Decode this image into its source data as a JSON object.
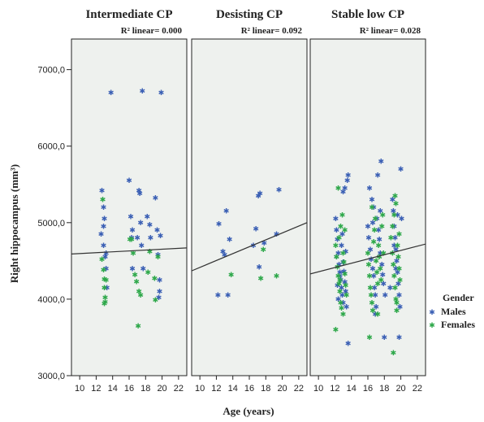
{
  "chart_data": {
    "type": "scatter",
    "xlabel": "Age (years)",
    "ylabel": "Right hippocampus (mm³)",
    "xlim": [
      9,
      23
    ],
    "ylim": [
      3000,
      7400
    ],
    "x_ticks": [
      "10",
      "12",
      "14",
      "16",
      "18",
      "20",
      "22"
    ],
    "x_tick_values": [
      10,
      12,
      14,
      16,
      18,
      20,
      22
    ],
    "y_ticks": [
      "3000,0",
      "4000,0",
      "5000,0",
      "6000,0",
      "7000,0"
    ],
    "y_tick_values": [
      3000,
      4000,
      5000,
      6000,
      7000
    ],
    "colors": {
      "Males": "#3a5fb4",
      "Females": "#2ea84a",
      "panel_bg": "#eef1ee",
      "fit_line": "#333333"
    },
    "legend": {
      "title": "Gender",
      "placement": "right",
      "entries": [
        "Males",
        "Females"
      ]
    },
    "panels": [
      {
        "title": "Intermediate CP",
        "r2_label": "R² linear= 0.000",
        "fit": {
          "x": [
            9,
            23
          ],
          "y": [
            4590,
            4670
          ]
        },
        "series": [
          {
            "name": "Males",
            "points": [
              [
                12.6,
                4850
              ],
              [
                12.7,
                5420
              ],
              [
                12.9,
                5200
              ],
              [
                13.0,
                5050
              ],
              [
                12.9,
                4700
              ],
              [
                13.1,
                4550
              ],
              [
                13.2,
                4600
              ],
              [
                13.2,
                4400
              ],
              [
                13.3,
                4150
              ],
              [
                12.9,
                4950
              ],
              [
                13.8,
                6700
              ],
              [
                16.0,
                5550
              ],
              [
                16.2,
                5080
              ],
              [
                16.4,
                4900
              ],
              [
                16.3,
                4800
              ],
              [
                17.0,
                4800
              ],
              [
                17.2,
                5420
              ],
              [
                17.3,
                5380
              ],
              [
                17.4,
                5000
              ],
              [
                17.5,
                4700
              ],
              [
                17.6,
                6720
              ],
              [
                17.7,
                4400
              ],
              [
                18.2,
                5080
              ],
              [
                18.5,
                4970
              ],
              [
                18.6,
                4800
              ],
              [
                19.2,
                5320
              ],
              [
                19.4,
                4900
              ],
              [
                19.5,
                4580
              ],
              [
                19.7,
                4250
              ],
              [
                19.9,
                6700
              ],
              [
                19.7,
                4100
              ],
              [
                19.6,
                4020
              ],
              [
                19.8,
                4830
              ],
              [
                16.4,
                4400
              ]
            ]
          },
          {
            "name": "Females",
            "points": [
              [
                12.7,
                4520
              ],
              [
                12.9,
                4380
              ],
              [
                13.0,
                4260
              ],
              [
                13.0,
                4150
              ],
              [
                13.1,
                4020
              ],
              [
                13.0,
                3940
              ],
              [
                12.8,
                5300
              ],
              [
                13.2,
                4250
              ],
              [
                13.1,
                3960
              ],
              [
                16.1,
                4780
              ],
              [
                16.5,
                4600
              ],
              [
                16.7,
                4320
              ],
              [
                16.9,
                4230
              ],
              [
                17.1,
                3650
              ],
              [
                17.2,
                4100
              ],
              [
                17.4,
                4050
              ],
              [
                18.3,
                4350
              ],
              [
                18.5,
                4620
              ],
              [
                19.1,
                4270
              ],
              [
                19.2,
                3990
              ],
              [
                19.5,
                4550
              ],
              [
                16.3,
                4780
              ]
            ]
          }
        ]
      },
      {
        "title": "Desisting CP",
        "r2_label": "R² linear= 0.092",
        "fit": {
          "x": [
            9,
            23
          ],
          "y": [
            4370,
            5000
          ]
        },
        "series": [
          {
            "name": "Males",
            "points": [
              [
                12.2,
                4050
              ],
              [
                12.3,
                4980
              ],
              [
                12.8,
                4620
              ],
              [
                13.0,
                4580
              ],
              [
                13.2,
                5150
              ],
              [
                13.4,
                4050
              ],
              [
                13.6,
                4780
              ],
              [
                16.8,
                4920
              ],
              [
                17.1,
                5350
              ],
              [
                17.3,
                5380
              ],
              [
                17.2,
                4420
              ],
              [
                17.8,
                4730
              ],
              [
                19.3,
                4850
              ],
              [
                19.6,
                5430
              ],
              [
                16.5,
                4700
              ]
            ]
          },
          {
            "name": "Females",
            "points": [
              [
                13.8,
                4320
              ],
              [
                17.4,
                4270
              ],
              [
                17.7,
                4650
              ],
              [
                19.3,
                4300
              ]
            ]
          }
        ]
      },
      {
        "title": "Stable low CP",
        "r2_label": "R² linear= 0.028",
        "fit": {
          "x": [
            9,
            23
          ],
          "y": [
            4330,
            4720
          ]
        },
        "series": [
          {
            "name": "Males",
            "points": [
              [
                12.1,
                5050
              ],
              [
                12.2,
                4900
              ],
              [
                12.3,
                4780
              ],
              [
                12.4,
                4600
              ],
              [
                12.5,
                4450
              ],
              [
                12.6,
                4350
              ],
              [
                12.7,
                4250
              ],
              [
                12.8,
                4150
              ],
              [
                12.9,
                4050
              ],
              [
                13.0,
                3950
              ],
              [
                12.4,
                4000
              ],
              [
                12.6,
                4300
              ],
              [
                12.8,
                4700
              ],
              [
                13.0,
                4480
              ],
              [
                13.1,
                4360
              ],
              [
                13.2,
                4220
              ],
              [
                13.3,
                4100
              ],
              [
                13.4,
                3900
              ],
              [
                13.5,
                5550
              ],
              [
                13.6,
                5620
              ],
              [
                13.2,
                5450
              ],
              [
                13.0,
                5400
              ],
              [
                13.6,
                3420
              ],
              [
                12.2,
                4550
              ],
              [
                12.3,
                4180
              ],
              [
                12.9,
                4850
              ],
              [
                13.3,
                4620
              ],
              [
                16.0,
                4950
              ],
              [
                16.1,
                4800
              ],
              [
                16.3,
                4650
              ],
              [
                16.4,
                4520
              ],
              [
                16.6,
                4400
              ],
              [
                16.7,
                4300
              ],
              [
                16.8,
                4150
              ],
              [
                16.9,
                4050
              ],
              [
                17.0,
                3900
              ],
              [
                16.2,
                5450
              ],
              [
                16.5,
                5300
              ],
              [
                16.7,
                5200
              ],
              [
                17.1,
                5050
              ],
              [
                17.3,
                4900
              ],
              [
                17.4,
                4780
              ],
              [
                17.5,
                4600
              ],
              [
                17.6,
                5800
              ],
              [
                17.7,
                4450
              ],
              [
                17.8,
                4320
              ],
              [
                17.9,
                4200
              ],
              [
                18.1,
                4050
              ],
              [
                17.2,
                5620
              ],
              [
                16.6,
                5000
              ],
              [
                18.0,
                3500
              ],
              [
                16.9,
                3800
              ],
              [
                17.5,
                5150
              ],
              [
                19.0,
                5300
              ],
              [
                19.1,
                5150
              ],
              [
                19.2,
                4950
              ],
              [
                19.3,
                4800
              ],
              [
                19.4,
                4650
              ],
              [
                19.5,
                4500
              ],
              [
                19.6,
                4350
              ],
              [
                19.7,
                4200
              ],
              [
                19.8,
                4050
              ],
              [
                19.9,
                3900
              ],
              [
                19.2,
                4700
              ],
              [
                19.6,
                5100
              ],
              [
                20.0,
                5700
              ],
              [
                20.1,
                5050
              ],
              [
                19.8,
                3500
              ],
              [
                19.4,
                4400
              ],
              [
                18.7,
                4150
              ]
            ]
          },
          {
            "name": "Females",
            "points": [
              [
                12.1,
                4700
              ],
              [
                12.2,
                4550
              ],
              [
                12.3,
                4420
              ],
              [
                12.4,
                4300
              ],
              [
                12.5,
                4200
              ],
              [
                12.6,
                4100
              ],
              [
                12.7,
                3950
              ],
              [
                12.8,
                3880
              ],
              [
                12.5,
                4800
              ],
              [
                12.7,
                4950
              ],
              [
                12.9,
                5100
              ],
              [
                13.0,
                4600
              ],
              [
                13.1,
                4480
              ],
              [
                13.2,
                4330
              ],
              [
                13.3,
                4180
              ],
              [
                13.4,
                4050
              ],
              [
                12.1,
                3600
              ],
              [
                12.4,
                5450
              ],
              [
                12.6,
                4250
              ],
              [
                13.0,
                3800
              ],
              [
                13.2,
                4900
              ],
              [
                16.0,
                4600
              ],
              [
                16.1,
                4450
              ],
              [
                16.2,
                4300
              ],
              [
                16.3,
                4150
              ],
              [
                16.4,
                4050
              ],
              [
                16.5,
                3950
              ],
              [
                16.6,
                3850
              ],
              [
                16.7,
                4750
              ],
              [
                16.8,
                4900
              ],
              [
                16.9,
                5050
              ],
              [
                17.0,
                4500
              ],
              [
                17.1,
                4350
              ],
              [
                17.2,
                4200
              ],
              [
                17.3,
                4700
              ],
              [
                17.4,
                4550
              ],
              [
                17.5,
                4400
              ],
              [
                17.6,
                4250
              ],
              [
                17.7,
                4950
              ],
              [
                17.8,
                5100
              ],
              [
                16.2,
                3500
              ],
              [
                17.9,
                4600
              ],
              [
                16.5,
                5200
              ],
              [
                17.2,
                3800
              ],
              [
                19.0,
                4600
              ],
              [
                19.1,
                4450
              ],
              [
                19.2,
                4300
              ],
              [
                19.3,
                4150
              ],
              [
                19.4,
                4000
              ],
              [
                19.5,
                3850
              ],
              [
                19.0,
                4950
              ],
              [
                19.2,
                5100
              ],
              [
                19.4,
                5250
              ],
              [
                19.6,
                4700
              ],
              [
                19.7,
                4550
              ],
              [
                19.8,
                4400
              ],
              [
                19.9,
                4250
              ],
              [
                19.1,
                3300
              ],
              [
                19.3,
                5350
              ],
              [
                19.5,
                3950
              ],
              [
                18.8,
                4800
              ],
              [
                19.8,
                4850
              ]
            ]
          }
        ]
      }
    ]
  }
}
